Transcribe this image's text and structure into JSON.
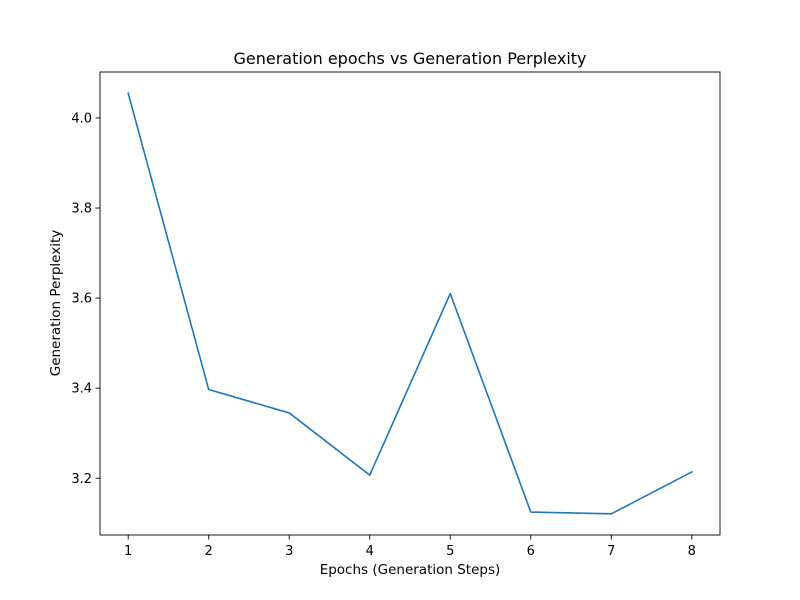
{
  "chart_data": {
    "type": "line",
    "title": "Generation epochs vs Generation Perplexity",
    "xlabel": "Epochs (Generation Steps)",
    "ylabel": "Generation Perplexity",
    "x": [
      1,
      2,
      3,
      4,
      5,
      6,
      7,
      8
    ],
    "series": [
      {
        "values": [
          4.055,
          3.397,
          3.345,
          3.207,
          3.61,
          3.125,
          3.121,
          3.214
        ],
        "color": "#1f77b4"
      }
    ],
    "xlim": [
      0.65,
      8.35
    ],
    "ylim": [
      3.074,
      4.102
    ],
    "xticks": [
      "1",
      "2",
      "3",
      "4",
      "5",
      "6",
      "7",
      "8"
    ],
    "yticks": [
      "3.2",
      "3.4",
      "3.6",
      "3.8",
      "4.0"
    ],
    "grid": false,
    "legend": "none"
  }
}
